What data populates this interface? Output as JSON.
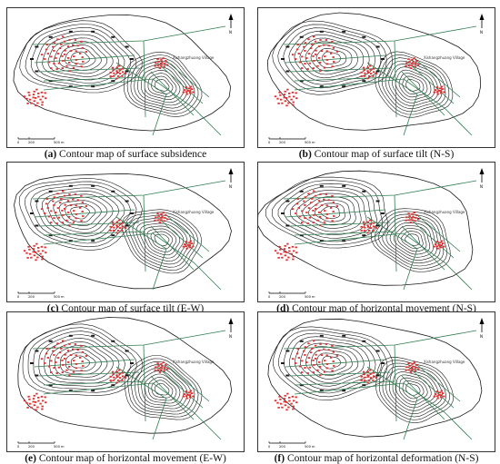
{
  "panels": [
    {
      "id": "a",
      "letter": "(a)",
      "title": "Contour map of surface subsidence"
    },
    {
      "id": "b",
      "letter": "(b)",
      "title": "Contour map of surface tilt (N-S)"
    },
    {
      "id": "c",
      "letter": "(c)",
      "title": "Contour map of surface tilt (E-W)"
    },
    {
      "id": "d",
      "letter": "(d)",
      "title": "Contour map of horizontal movement (N-S)"
    },
    {
      "id": "e",
      "letter": "(e)",
      "title": "Contour map of horizontal movement (E-W)"
    },
    {
      "id": "f",
      "letter": "(f)",
      "title": "Contour map of horizontal deformation (N-S)"
    }
  ],
  "map_labels": {
    "village_label": "Xishangzhuang Village",
    "scale_ticks": [
      "0",
      "200",
      "500 m"
    ],
    "north_label": "N"
  },
  "colors": {
    "contour": "#1a1a1a",
    "mine_lines": "#2f7d4f",
    "buildings": "#e03030",
    "frame": "#333333"
  }
}
